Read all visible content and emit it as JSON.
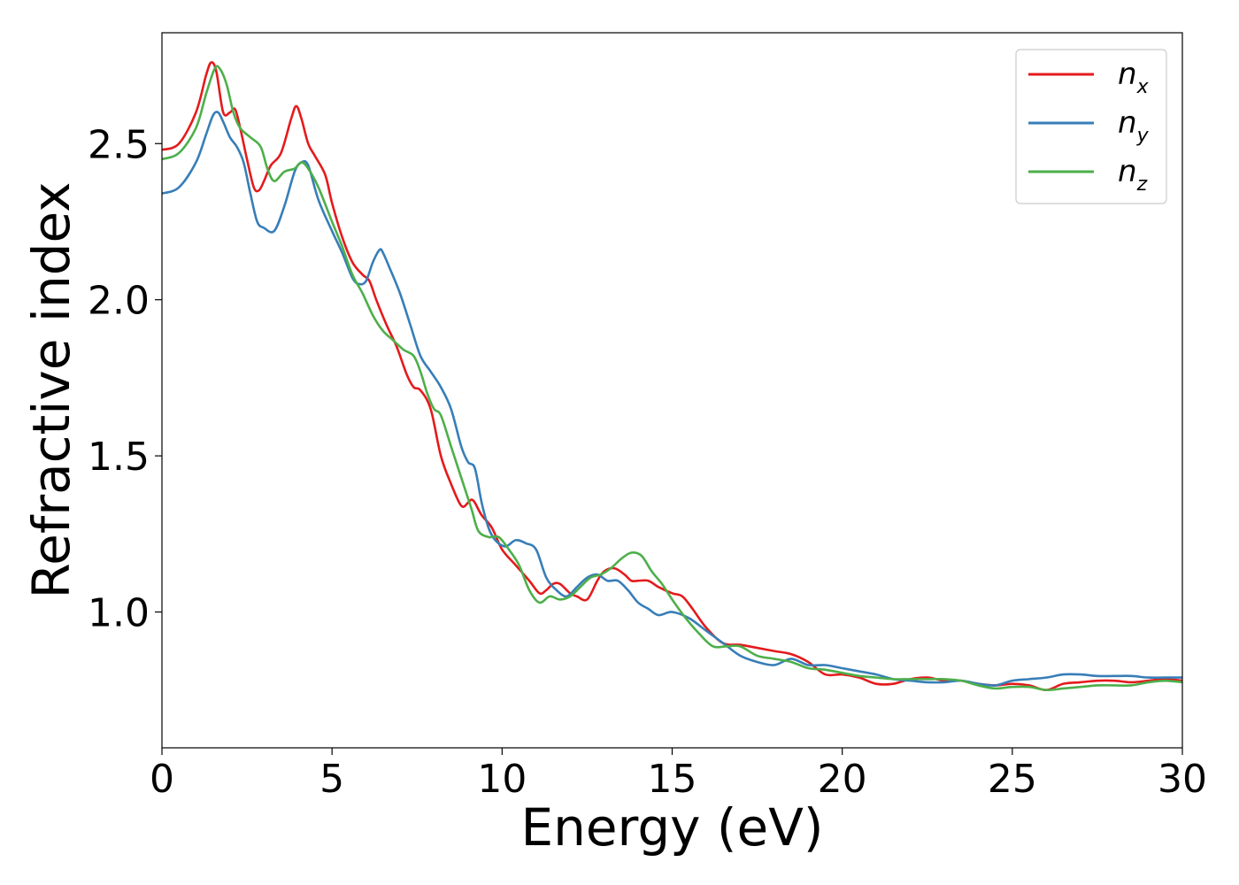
{
  "chart_data": {
    "type": "line",
    "xlabel": "Energy (eV)",
    "ylabel": "Refractive index",
    "xlim": [
      0,
      30
    ],
    "ylim": [
      0.565,
      2.855
    ],
    "xticks": [
      0,
      5,
      10,
      15,
      20,
      25,
      30
    ],
    "xtick_labels": [
      "0",
      "5",
      "10",
      "15",
      "20",
      "25",
      "30"
    ],
    "yticks": [
      1.0,
      1.5,
      2.0,
      2.5
    ],
    "ytick_labels": [
      "1.0",
      "1.5",
      "2.0",
      "2.5"
    ],
    "grid": false,
    "legend_position": "top-right",
    "series": [
      {
        "name": "n_x",
        "label_main": "n",
        "label_sub": "x",
        "color": "#e41a1c",
        "x": [
          0,
          0.5,
          1.0,
          1.3,
          1.45,
          1.6,
          1.8,
          2.0,
          2.15,
          2.3,
          2.5,
          2.7,
          2.85,
          3.0,
          3.2,
          3.5,
          3.8,
          3.95,
          4.1,
          4.3,
          4.5,
          4.8,
          5.0,
          5.3,
          5.6,
          5.9,
          6.1,
          6.3,
          6.6,
          6.9,
          7.2,
          7.4,
          7.6,
          7.9,
          8.2,
          8.5,
          8.8,
          9.0,
          9.1,
          9.2,
          9.4,
          9.7,
          10.0,
          10.4,
          10.8,
          11.1,
          11.3,
          11.5,
          11.7,
          12.0,
          12.2,
          12.5,
          12.8,
          13.0,
          13.3,
          13.6,
          13.8,
          14.0,
          14.3,
          14.6,
          15.0,
          15.3,
          15.6,
          16.0,
          16.5,
          17.0,
          17.5,
          18.0,
          18.5,
          19.0,
          19.5,
          20.0,
          20.5,
          21.0,
          21.5,
          22.0,
          22.5,
          23.0,
          23.5,
          24.0,
          24.5,
          25.0,
          25.5,
          26.0,
          26.5,
          27.0,
          27.5,
          28.0,
          28.5,
          29.0,
          29.5,
          30.0
        ],
        "y": [
          2.48,
          2.5,
          2.6,
          2.72,
          2.76,
          2.73,
          2.6,
          2.6,
          2.61,
          2.55,
          2.45,
          2.36,
          2.35,
          2.38,
          2.43,
          2.47,
          2.58,
          2.62,
          2.58,
          2.5,
          2.46,
          2.4,
          2.31,
          2.2,
          2.12,
          2.08,
          2.06,
          2.0,
          1.92,
          1.85,
          1.76,
          1.72,
          1.71,
          1.65,
          1.5,
          1.41,
          1.34,
          1.35,
          1.36,
          1.35,
          1.31,
          1.27,
          1.2,
          1.15,
          1.1,
          1.06,
          1.07,
          1.09,
          1.09,
          1.06,
          1.05,
          1.04,
          1.1,
          1.13,
          1.14,
          1.12,
          1.1,
          1.1,
          1.1,
          1.08,
          1.06,
          1.05,
          1.01,
          0.95,
          0.9,
          0.895,
          0.885,
          0.875,
          0.865,
          0.84,
          0.8,
          0.8,
          0.79,
          0.77,
          0.77,
          0.785,
          0.79,
          0.78,
          0.78,
          0.77,
          0.765,
          0.77,
          0.765,
          0.75,
          0.77,
          0.775,
          0.78,
          0.78,
          0.775,
          0.78,
          0.785,
          0.78
        ]
      },
      {
        "name": "n_y",
        "label_main": "n",
        "label_sub": "y",
        "color": "#377eb8",
        "x": [
          0,
          0.5,
          1.0,
          1.3,
          1.5,
          1.65,
          1.8,
          2.0,
          2.2,
          2.4,
          2.6,
          2.8,
          3.0,
          3.3,
          3.6,
          3.9,
          4.1,
          4.3,
          4.6,
          5.0,
          5.3,
          5.6,
          5.8,
          6.0,
          6.2,
          6.4,
          6.5,
          6.7,
          7.0,
          7.3,
          7.6,
          7.9,
          8.2,
          8.5,
          8.8,
          9.0,
          9.2,
          9.4,
          9.6,
          9.8,
          10.1,
          10.4,
          10.7,
          11.0,
          11.3,
          11.6,
          11.9,
          12.2,
          12.5,
          12.8,
          13.1,
          13.4,
          13.7,
          14.0,
          14.3,
          14.6,
          15.0,
          15.5,
          16.0,
          16.5,
          17.0,
          17.5,
          18.0,
          18.5,
          19.0,
          19.5,
          20.0,
          20.5,
          21.0,
          21.5,
          22.0,
          22.5,
          23.0,
          23.5,
          24.0,
          24.5,
          25.0,
          25.5,
          26.0,
          26.5,
          27.0,
          27.5,
          28.0,
          28.5,
          29.0,
          29.5,
          30.0
        ],
        "y": [
          2.34,
          2.36,
          2.44,
          2.53,
          2.59,
          2.6,
          2.57,
          2.52,
          2.49,
          2.44,
          2.34,
          2.25,
          2.23,
          2.22,
          2.3,
          2.41,
          2.44,
          2.43,
          2.32,
          2.22,
          2.15,
          2.07,
          2.05,
          2.06,
          2.12,
          2.16,
          2.15,
          2.1,
          2.02,
          1.92,
          1.82,
          1.77,
          1.72,
          1.65,
          1.53,
          1.48,
          1.46,
          1.35,
          1.27,
          1.23,
          1.21,
          1.23,
          1.22,
          1.2,
          1.11,
          1.07,
          1.05,
          1.08,
          1.11,
          1.12,
          1.1,
          1.1,
          1.07,
          1.03,
          1.01,
          0.99,
          1.0,
          0.98,
          0.94,
          0.9,
          0.86,
          0.84,
          0.83,
          0.85,
          0.83,
          0.83,
          0.82,
          0.81,
          0.8,
          0.785,
          0.78,
          0.775,
          0.775,
          0.78,
          0.77,
          0.765,
          0.78,
          0.785,
          0.79,
          0.8,
          0.8,
          0.795,
          0.795,
          0.795,
          0.79,
          0.79,
          0.79
        ]
      },
      {
        "name": "n_z",
        "label_main": "n",
        "label_sub": "z",
        "color": "#4daf4a",
        "x": [
          0,
          0.5,
          1.0,
          1.3,
          1.55,
          1.7,
          1.9,
          2.1,
          2.3,
          2.6,
          2.9,
          3.1,
          3.3,
          3.6,
          3.9,
          4.1,
          4.3,
          4.6,
          5.0,
          5.3,
          5.6,
          5.9,
          6.2,
          6.5,
          6.8,
          7.1,
          7.4,
          7.6,
          7.8,
          8.0,
          8.2,
          8.5,
          8.8,
          9.1,
          9.3,
          9.6,
          9.9,
          10.2,
          10.5,
          10.8,
          11.1,
          11.4,
          11.7,
          12.0,
          12.3,
          12.6,
          12.9,
          13.2,
          13.5,
          13.8,
          14.1,
          14.4,
          14.7,
          15.0,
          15.4,
          15.8,
          16.2,
          16.6,
          17.0,
          17.5,
          18.0,
          18.5,
          19.0,
          19.5,
          20.0,
          20.5,
          21.0,
          21.5,
          22.0,
          22.5,
          23.0,
          23.5,
          24.0,
          24.5,
          25.0,
          25.5,
          26.0,
          26.5,
          27.0,
          27.5,
          28.0,
          28.5,
          29.0,
          29.5,
          30.0
        ],
        "y": [
          2.45,
          2.47,
          2.55,
          2.66,
          2.74,
          2.74,
          2.69,
          2.6,
          2.55,
          2.52,
          2.49,
          2.42,
          2.38,
          2.41,
          2.42,
          2.44,
          2.42,
          2.36,
          2.25,
          2.17,
          2.08,
          2.02,
          1.95,
          1.9,
          1.87,
          1.84,
          1.82,
          1.77,
          1.7,
          1.65,
          1.63,
          1.53,
          1.43,
          1.33,
          1.26,
          1.24,
          1.24,
          1.2,
          1.15,
          1.07,
          1.03,
          1.05,
          1.04,
          1.05,
          1.08,
          1.11,
          1.12,
          1.14,
          1.17,
          1.19,
          1.18,
          1.13,
          1.09,
          1.04,
          0.98,
          0.93,
          0.89,
          0.89,
          0.89,
          0.86,
          0.85,
          0.84,
          0.82,
          0.815,
          0.805,
          0.795,
          0.79,
          0.785,
          0.785,
          0.785,
          0.785,
          0.78,
          0.765,
          0.755,
          0.76,
          0.76,
          0.75,
          0.755,
          0.76,
          0.765,
          0.765,
          0.765,
          0.775,
          0.78,
          0.775
        ]
      }
    ]
  }
}
